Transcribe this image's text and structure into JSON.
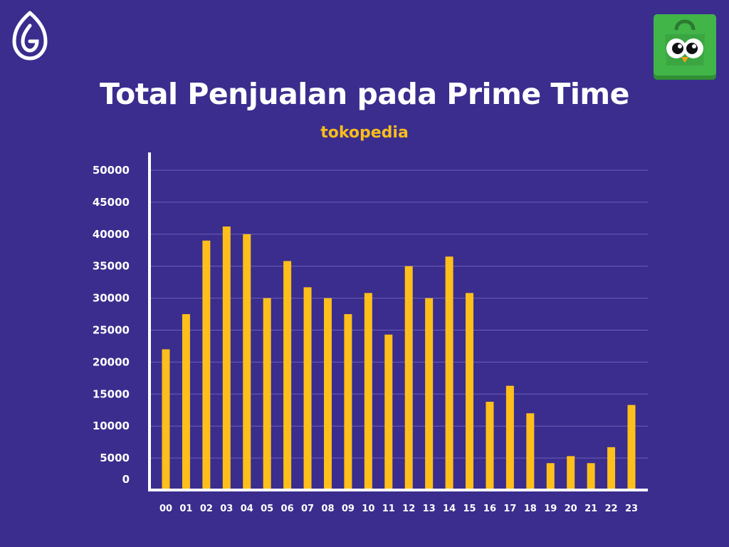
{
  "colors": {
    "background": "#3a2d8e",
    "bar": "#ffbf1a",
    "subtitle": "#f9bd1b",
    "axis": "#ffffff",
    "grid": "#6e61b6",
    "brand_green": "#42b549"
  },
  "icons": {
    "left_logo": "leaf-logo-icon",
    "right_logo": "tokopedia-owl-bag-icon"
  },
  "chart_data": {
    "type": "bar",
    "title": "Total Penjualan pada Prime Time",
    "subtitle": "tokopedia",
    "xlabel": "",
    "ylabel": "",
    "ylim": [
      0,
      50000
    ],
    "yticks": [
      0,
      5000,
      10000,
      15000,
      20000,
      25000,
      30000,
      35000,
      40000,
      45000,
      50000
    ],
    "grid": true,
    "categories": [
      "00",
      "01",
      "02",
      "03",
      "04",
      "05",
      "06",
      "07",
      "08",
      "09",
      "10",
      "11",
      "12",
      "13",
      "14",
      "15",
      "16",
      "17",
      "18",
      "19",
      "20",
      "21",
      "22",
      "23"
    ],
    "values": [
      22000,
      27500,
      39000,
      41200,
      40000,
      30000,
      35800,
      31700,
      30000,
      27500,
      30800,
      24300,
      35000,
      30000,
      36500,
      30800,
      13800,
      16300,
      12000,
      4200,
      5300,
      4200,
      6700,
      13300
    ]
  }
}
